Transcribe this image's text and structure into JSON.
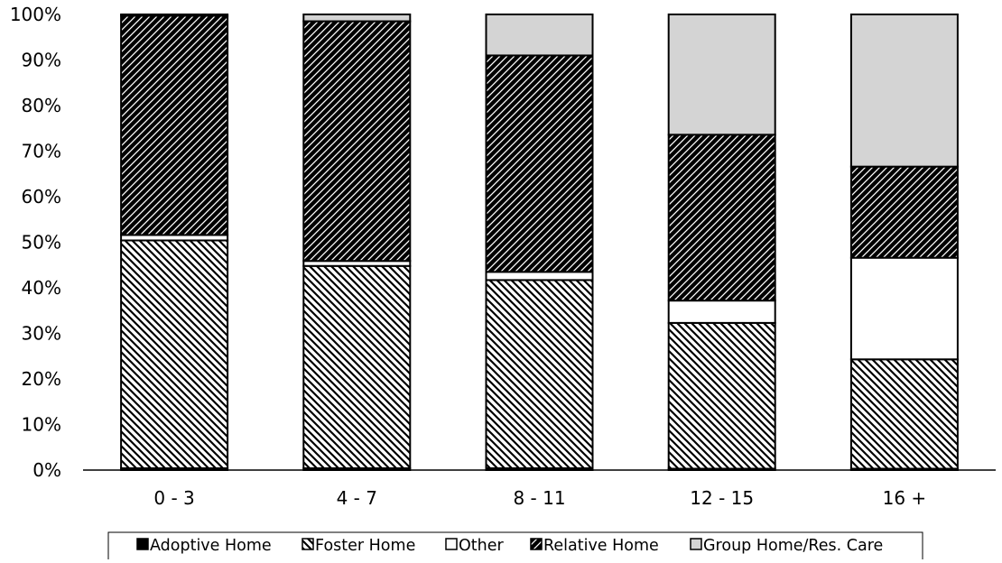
{
  "chart_data": {
    "type": "bar",
    "stacked": true,
    "percent": true,
    "title": "",
    "xlabel": "",
    "ylabel": "",
    "ylim": [
      0,
      100
    ],
    "yticks": [
      "0%",
      "10%",
      "20%",
      "30%",
      "40%",
      "50%",
      "60%",
      "70%",
      "80%",
      "90%",
      "100%"
    ],
    "categories": [
      "0 - 3",
      "4 - 7",
      "8 - 11",
      "12 - 15",
      "16 +"
    ],
    "series": [
      {
        "name": "Adoptive Home",
        "values": [
          0.4,
          0.4,
          0.4,
          0.3,
          0.3
        ],
        "color": "#000000",
        "pattern": "solid"
      },
      {
        "name": "Foster Home",
        "values": [
          50.0,
          44.4,
          41.3,
          32.0,
          24.0
        ],
        "color": "#000000",
        "pattern": "diagonal-light"
      },
      {
        "name": "Other",
        "values": [
          1.2,
          1.1,
          1.8,
          4.9,
          22.3
        ],
        "color": "#ffffff",
        "pattern": "solid"
      },
      {
        "name": "Relative Home",
        "values": [
          48.1,
          52.6,
          47.5,
          36.4,
          20.0
        ],
        "color": "#000000",
        "pattern": "diagonal-dark"
      },
      {
        "name": "Group Home/Res. Care",
        "values": [
          0.3,
          1.5,
          9.0,
          26.4,
          33.4
        ],
        "color": "#d4d4d4",
        "pattern": "solid"
      }
    ],
    "grid": false,
    "legend_position": "bottom"
  }
}
